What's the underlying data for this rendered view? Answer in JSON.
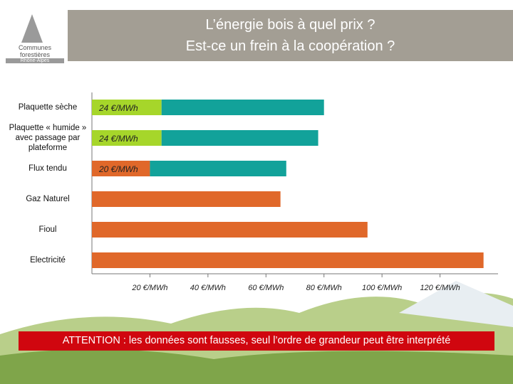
{
  "logo": {
    "name": "Communes forestières",
    "region": "Rhône-Alpes"
  },
  "chart_data": {
    "type": "stacked-barh",
    "title": [
      "L’énergie bois à quel prix ?",
      "Est-ce un frein à la coopération ?"
    ],
    "categories": [
      "Plaquette sèche",
      "Plaquette « humide » avec passage par plateforme",
      "Flux tendu",
      "Gaz Naturel",
      "Fioul",
      "Electricité"
    ],
    "series": [
      {
        "colors": [
          "#a6d62a",
          "#a6d62a",
          "#e0682a",
          "#e0682a",
          "#e0682a",
          "#e0682a"
        ],
        "values": [
          24,
          24,
          20,
          65,
          95,
          135
        ],
        "value_labels": [
          "24 €/MWh",
          "24 €/MWh",
          "20 €/MWh",
          null,
          null,
          null
        ]
      },
      {
        "color": "#12a29a",
        "values": [
          56,
          54,
          47,
          null,
          null,
          null
        ]
      }
    ],
    "xlim": [
      0,
      140
    ],
    "xticks": [
      {
        "value": 20,
        "label": "20 €/MWh"
      },
      {
        "value": 40,
        "label": "40 €/MWh"
      },
      {
        "value": 60,
        "label": "60 €/MWh"
      },
      {
        "value": 80,
        "label": "80 €/MWh"
      },
      {
        "value": 100,
        "label": "100 €/MWh"
      },
      {
        "value": 120,
        "label": "120 €/MWh"
      }
    ],
    "annotation": "ATTENTION : les données sont fausses, seul l’ordre de grandeur peut être interprété"
  }
}
